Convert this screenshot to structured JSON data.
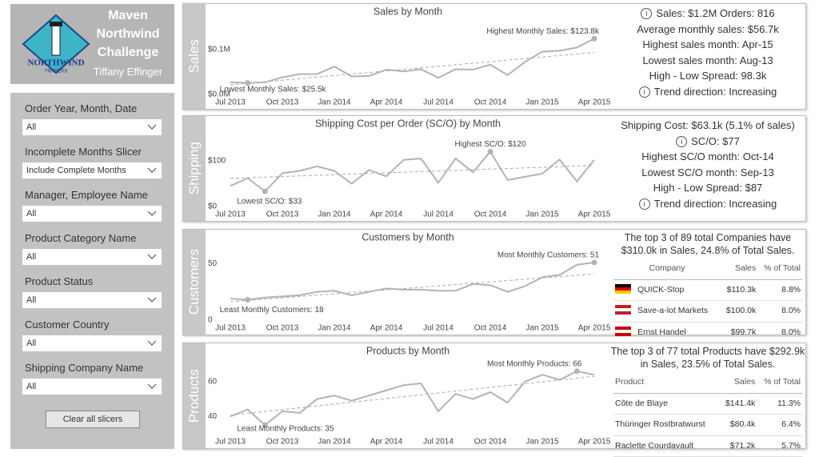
{
  "header": {
    "title_lines": [
      "Maven",
      "Northwind",
      "Challenge"
    ],
    "author": "Tiffany Effinger",
    "logo_lines": [
      "NORTHWIND",
      "TRADERS"
    ]
  },
  "slicers": [
    {
      "label": "Order Year, Month, Date",
      "value": "All"
    },
    {
      "label": "Incomplete Months Slicer",
      "value": "Include Complete Months"
    },
    {
      "label": "Manager, Employee Name",
      "value": "All"
    },
    {
      "label": "Product Category Name",
      "value": "All"
    },
    {
      "label": "Product Status",
      "value": "All"
    },
    {
      "label": "Customer Country",
      "value": "All"
    },
    {
      "label": "Shipping Company Name",
      "value": "All"
    }
  ],
  "clear_button": "Clear all slicers",
  "chart_data": [
    {
      "type": "line",
      "title": "Sales by Month",
      "y_label": "Sales",
      "color": "#b3b3b3",
      "max_label": "Highest Monthly Sales: $123.8k",
      "min_label": "Lowest Monthly Sales: $25.5k",
      "categories": [
        "Jul 2013",
        null,
        null,
        "Oct 2013",
        null,
        null,
        "Jan 2014",
        null,
        null,
        "Apr 2014",
        null,
        null,
        "Jul 2014",
        null,
        null,
        "Oct 2014",
        null,
        null,
        "Jan 2015",
        null,
        null,
        "Apr 2015"
      ],
      "values": [
        0.027,
        0.0255,
        0.027,
        0.038,
        0.045,
        0.045,
        0.062,
        0.04,
        0.041,
        0.055,
        0.051,
        0.056,
        0.037,
        0.056,
        0.055,
        0.066,
        0.043,
        0.072,
        0.095,
        0.097,
        0.104,
        0.1238
      ],
      "ylim": [
        0,
        0.158
      ],
      "yticks": [
        {
          "value": 0,
          "label": "$0.0M"
        },
        {
          "value": 0.1,
          "label": "$0.1M"
        }
      ]
    },
    {
      "type": "line",
      "title": "Shipping Cost per Order (SC/O) by Month",
      "y_label": "Shipping",
      "color": "#b3b3b3",
      "max_label": "Highest SC/O: $120",
      "min_label": "Lowest SC/O: $33",
      "categories": [
        "Jul 2013",
        null,
        null,
        "Oct 2013",
        null,
        null,
        "Jan 2014",
        null,
        null,
        "Apr 2014",
        null,
        null,
        "Jul 2014",
        null,
        null,
        "Oct 2014",
        null,
        null,
        "Jan 2015",
        null,
        null,
        "Apr 2015"
      ],
      "values": [
        45,
        62,
        33,
        73,
        78,
        88,
        78,
        50,
        80,
        66,
        102,
        105,
        52,
        105,
        75,
        120,
        58,
        65,
        72,
        103,
        55,
        102
      ],
      "ylim": [
        0,
        156
      ],
      "yticks": [
        {
          "value": 0,
          "label": "$0"
        },
        {
          "value": 100,
          "label": "$100"
        }
      ]
    },
    {
      "type": "line",
      "title": "Customers by Month",
      "y_label": "Customers",
      "color": "#b3b3b3",
      "max_label": "Most Monthly Customers: 51",
      "min_label": "Least Monthly Customers: 18",
      "categories": [
        "Jul 2013",
        null,
        null,
        "Oct 2013",
        null,
        null,
        "Jan 2014",
        null,
        null,
        "Apr 2014",
        null,
        null,
        "Jul 2014",
        null,
        null,
        "Oct 2014",
        null,
        null,
        "Jan 2015",
        null,
        null,
        "Apr 2015"
      ],
      "values": [
        19,
        18,
        20,
        21,
        22,
        25,
        26,
        22,
        25,
        28,
        27,
        27,
        26,
        26,
        32,
        31,
        25,
        30,
        38,
        40,
        49,
        51
      ],
      "ylim": [
        0,
        63
      ],
      "yticks": [
        0,
        50
      ]
    },
    {
      "type": "line",
      "title": "Products by Month",
      "y_label": "Products",
      "color": "#b3b3b3",
      "max_label": "Most Monthly Products: 66",
      "min_label": "Least Monthly Products: 35",
      "categories": [
        "Jul 2013",
        null,
        null,
        "Oct 2013",
        null,
        null,
        "Jan 2014",
        null,
        null,
        "Apr 2014",
        null,
        null,
        "Jul 2014",
        null,
        null,
        "Oct 2014",
        null,
        null,
        "Jan 2015",
        null,
        null,
        "Apr 2015"
      ],
      "values": [
        40,
        44,
        35,
        43,
        42,
        50,
        52,
        49,
        52,
        55,
        58,
        59,
        43,
        53,
        50,
        54,
        48,
        60,
        64,
        61,
        66,
        64
      ],
      "ylim": [
        30,
        71
      ],
      "yticks": [
        40,
        60
      ]
    }
  ],
  "panels": [
    {
      "lines": [
        "Sales: $1.2M  Orders: 816",
        "Average monthly sales: $56.7k",
        "Highest sales month: Apr-15",
        "Lowest sales month: Aug-13",
        "High - Low Spread: 98.3k",
        "Trend direction: Increasing"
      ]
    },
    {
      "lines": [
        "Shipping Cost: $63.1k (5.1% of sales)",
        "SC/O: $77",
        "Highest SC/O month: Oct-14",
        "Lowest SC/O month: Sep-13",
        "High - Low Spread: $87",
        "Trend direction: Increasing"
      ]
    },
    {
      "caption": "The top 3 of 89  total Companies have $310.0k in Sales, 24.8% of Total Sales.",
      "header": [
        "Company",
        "Sales",
        "% of Total"
      ],
      "rows": [
        [
          "QUICK-Stop",
          "$110.3k",
          "8.8%"
        ],
        [
          "Save-a-lot Markets",
          "$100.0k",
          "8.0%"
        ],
        [
          "Ernst Handel",
          "$99.7k",
          "8.0%"
        ]
      ]
    },
    {
      "caption": "The top 3 of 77 total Products have $292.9k in Sales, 23.5% of Total Sales.",
      "header": [
        "Product",
        "Sales",
        "% of Total"
      ],
      "rows": [
        [
          "Côte de Blaye",
          "$141.4k",
          "11.3%"
        ],
        [
          "Thüringer Rostbratwurst",
          "$80.4k",
          "6.4%"
        ],
        [
          "Raclette Courdavault",
          "$71.2k",
          "5.7%"
        ]
      ]
    }
  ]
}
